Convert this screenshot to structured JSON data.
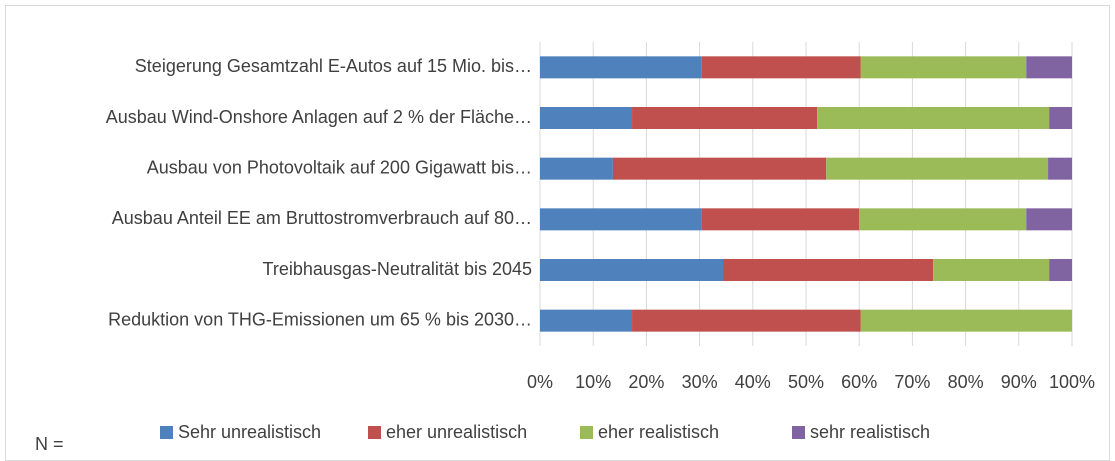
{
  "chart_data": {
    "type": "stacked-bar-horizontal",
    "categories": [
      "Steigerung Gesamtzahl E-Autos auf 15 Mio. bis…",
      "Ausbau Wind-Onshore Anlagen auf 2 % der Fläche…",
      "Ausbau von Photovoltaik auf 200 Gigawatt bis…",
      "Ausbau Anteil EE am Bruttostromverbrauch auf 80…",
      "Treibhausgas-Neutralität bis 2045",
      "Reduktion von THG-Emissionen um 65 % bis 2030…"
    ],
    "series": [
      {
        "name": "Sehr unrealistisch",
        "color": "#4f81bd",
        "values": [
          30.4,
          17.3,
          13.7,
          30.3,
          34.4,
          17.3
        ]
      },
      {
        "name": "eher unrealistisch",
        "color": "#c0504d",
        "values": [
          29.9,
          34.8,
          40.1,
          29.7,
          39.5,
          43.0
        ]
      },
      {
        "name": "eher realistisch",
        "color": "#9bbb59",
        "values": [
          31.1,
          43.6,
          41.7,
          31.4,
          21.8,
          39.7
        ]
      },
      {
        "name": "sehr realistisch",
        "color": "#8064a2",
        "values": [
          8.6,
          4.3,
          4.5,
          8.6,
          4.3,
          0
        ]
      }
    ],
    "xlim": [
      0,
      100
    ],
    "xticks": [
      {
        "value": 0,
        "label": "0%"
      },
      {
        "value": 10,
        "label": "10%"
      },
      {
        "value": 20,
        "label": "20%"
      },
      {
        "value": 30,
        "label": "30%"
      },
      {
        "value": 40,
        "label": "40%"
      },
      {
        "value": 50,
        "label": "50%"
      },
      {
        "value": 60,
        "label": "60%"
      },
      {
        "value": 70,
        "label": "70%"
      },
      {
        "value": 80,
        "label": "80%"
      },
      {
        "value": 90,
        "label": "90%"
      },
      {
        "value": 100,
        "label": "100%"
      }
    ],
    "grid": true,
    "legend": "bottom",
    "annotation": "N ="
  }
}
